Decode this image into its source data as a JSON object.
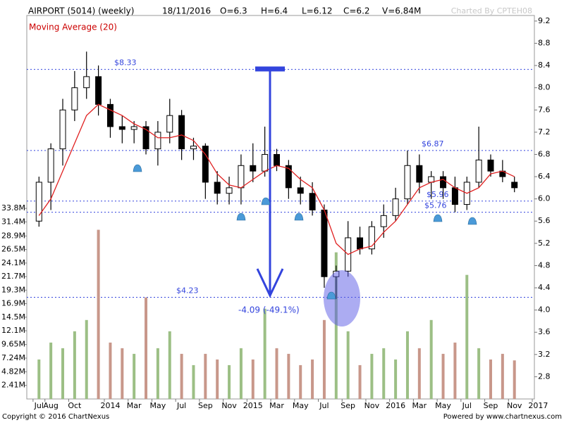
{
  "chart_data": {
    "type": "candlestick",
    "title": "AIRPORT (5014) (weekly)",
    "date": "18/11/2016",
    "quote": [
      "O=6.3",
      "H=6.4",
      "L=6.12",
      "C=6.2",
      "V=6.84M"
    ],
    "credit": "Charted By CPTEH08",
    "footer_left": "Copyright © 2016 ChartNexus",
    "footer_right": "Powered by www.chartnexus.com",
    "annotation": "-4.09 (-49.1%)",
    "x": [
      "2013-07",
      "2013-08",
      "2013-09",
      "2013-10",
      "2013-11",
      "2013-12",
      "2014-01",
      "2014-02",
      "2014-03",
      "2014-04",
      "2014-05",
      "2014-06",
      "2014-07",
      "2014-08",
      "2014-09",
      "2014-10",
      "2014-11",
      "2014-12",
      "2015-01",
      "2015-02",
      "2015-03",
      "2015-04",
      "2015-05",
      "2015-06",
      "2015-07",
      "2015-08",
      "2015-09",
      "2015-10",
      "2015-11",
      "2015-12",
      "2016-01",
      "2016-02",
      "2016-03",
      "2016-04",
      "2016-05",
      "2016-06",
      "2016-07",
      "2016-08",
      "2016-09",
      "2016-10",
      "2016-11"
    ],
    "open": [
      5.6,
      6.3,
      6.9,
      7.6,
      8.0,
      8.2,
      7.7,
      7.3,
      7.25,
      7.3,
      6.9,
      7.2,
      7.5,
      6.9,
      6.95,
      6.3,
      6.1,
      6.2,
      6.6,
      6.5,
      6.8,
      6.6,
      6.2,
      6.1,
      5.8,
      4.6,
      4.7,
      5.3,
      5.1,
      5.5,
      5.7,
      6.0,
      6.6,
      6.3,
      6.4,
      6.2,
      5.9,
      6.3,
      6.7,
      6.5,
      6.3
    ],
    "high": [
      6.4,
      7.0,
      7.8,
      8.3,
      8.65,
      8.4,
      7.8,
      7.5,
      7.4,
      7.4,
      7.4,
      7.8,
      7.6,
      7.1,
      7.0,
      6.5,
      6.4,
      6.8,
      7.0,
      7.3,
      6.9,
      6.7,
      6.4,
      6.3,
      5.9,
      4.8,
      5.6,
      5.5,
      5.6,
      5.9,
      6.2,
      6.87,
      6.8,
      6.5,
      6.5,
      6.4,
      6.4,
      7.3,
      6.8,
      6.7,
      6.4
    ],
    "low": [
      5.5,
      5.8,
      6.6,
      7.4,
      7.8,
      7.5,
      7.1,
      7.0,
      7.0,
      6.8,
      6.6,
      7.0,
      6.7,
      6.7,
      6.0,
      5.9,
      5.9,
      5.9,
      6.3,
      6.4,
      6.5,
      6.0,
      5.9,
      5.7,
      4.4,
      4.2,
      4.6,
      5.0,
      5.0,
      5.3,
      5.6,
      5.9,
      6.1,
      6.0,
      6.0,
      5.76,
      5.8,
      6.2,
      6.4,
      6.3,
      6.12
    ],
    "close": [
      6.3,
      6.9,
      7.6,
      8.0,
      8.2,
      7.7,
      7.3,
      7.25,
      7.3,
      6.9,
      7.2,
      7.5,
      6.9,
      6.95,
      6.3,
      6.1,
      6.2,
      6.6,
      6.5,
      6.8,
      6.6,
      6.2,
      6.1,
      5.8,
      4.6,
      4.7,
      5.3,
      5.1,
      5.5,
      5.7,
      6.0,
      6.6,
      6.3,
      6.4,
      6.2,
      5.9,
      6.3,
      6.7,
      6.5,
      6.4,
      6.2
    ],
    "up_color": "#ffffff",
    "down_color": "#000000",
    "moving_average": {
      "name": "Moving Average (20)",
      "color": "#e02020",
      "values": [
        5.7,
        6.0,
        6.5,
        7.0,
        7.5,
        7.7,
        7.6,
        7.5,
        7.35,
        7.25,
        7.1,
        7.1,
        7.15,
        7.05,
        6.8,
        6.45,
        6.25,
        6.2,
        6.35,
        6.5,
        6.6,
        6.55,
        6.35,
        6.2,
        5.8,
        5.2,
        5.0,
        5.1,
        5.15,
        5.4,
        5.6,
        5.9,
        6.2,
        6.3,
        6.35,
        6.2,
        6.1,
        6.2,
        6.45,
        6.5,
        6.4
      ]
    },
    "volume": {
      "up_color": "#9cbf85",
      "down_color": "#c8978a",
      "values": [
        7,
        10,
        9,
        12,
        14,
        30,
        10,
        9,
        8,
        18,
        9,
        12,
        8,
        6,
        8,
        7,
        6,
        9,
        7,
        16,
        9,
        8,
        6,
        7,
        14,
        26,
        12,
        6,
        8,
        9,
        7,
        12,
        9,
        14,
        8,
        10,
        22,
        9,
        7,
        8,
        6.84
      ]
    },
    "levels": [
      {
        "value": 8.33,
        "label": "$8.33"
      },
      {
        "value": 6.87,
        "label": "$6.87"
      },
      {
        "value": 5.96,
        "label": "$5.96"
      },
      {
        "value": 5.76,
        "label": "$5.76"
      },
      {
        "value": 4.23,
        "label": "$4.23"
      }
    ],
    "xlim": [
      "2013-06",
      "2017-01"
    ],
    "xticks": [
      {
        "value": "2013-07",
        "label": "Jul"
      },
      {
        "value": "2013-08",
        "label": "Aug"
      },
      {
        "value": "2013-10",
        "label": "Oct"
      },
      {
        "value": "2014-01",
        "label": "2014"
      },
      {
        "value": "2014-03",
        "label": "Mar"
      },
      {
        "value": "2014-05",
        "label": "May"
      },
      {
        "value": "2014-07",
        "label": "Jul"
      },
      {
        "value": "2014-09",
        "label": "Sep"
      },
      {
        "value": "2014-11",
        "label": "Nov"
      },
      {
        "value": "2015-01",
        "label": "2015"
      },
      {
        "value": "2015-03",
        "label": "Mar"
      },
      {
        "value": "2015-05",
        "label": "May"
      },
      {
        "value": "2015-07",
        "label": "Jul"
      },
      {
        "value": "2015-09",
        "label": "Sep"
      },
      {
        "value": "2015-11",
        "label": "Nov"
      },
      {
        "value": "2016-01",
        "label": "2016"
      },
      {
        "value": "2016-03",
        "label": "Mar"
      },
      {
        "value": "2016-05",
        "label": "May"
      },
      {
        "value": "2016-07",
        "label": "Jul"
      },
      {
        "value": "2016-09",
        "label": "Sep"
      },
      {
        "value": "2016-11",
        "label": "Nov"
      },
      {
        "value": "2017-01",
        "label": "2017"
      }
    ],
    "ylim": [
      2.4,
      9.3
    ],
    "yticks": [
      2.8,
      3.2,
      3.6,
      {
        "value": 4,
        "label": "4.0"
      },
      4.4,
      4.8,
      5.2,
      5.6,
      {
        "value": 6,
        "label": "6.0"
      },
      6.4,
      6.8,
      7.2,
      7.6,
      {
        "value": 8,
        "label": "8.0"
      },
      8.4,
      8.8,
      9.2
    ],
    "y2lim": [
      0,
      68
    ],
    "y2ticks": [
      {
        "value": 2.41,
        "label": "2.41M"
      },
      {
        "value": 4.82,
        "label": "4.82M"
      },
      {
        "value": 7.24,
        "label": "7.24M"
      },
      {
        "value": 9.65,
        "label": "9.65M"
      },
      {
        "value": 12.1,
        "label": "12.1M"
      },
      {
        "value": 14.5,
        "label": "14.5M"
      },
      {
        "value": 16.9,
        "label": "16.9M"
      },
      {
        "value": 19.3,
        "label": "19.3M"
      },
      {
        "value": 21.7,
        "label": "21.7M"
      },
      {
        "value": 24.1,
        "label": "24.1M"
      },
      {
        "value": 26.5,
        "label": "26.5M"
      },
      {
        "value": 28.9,
        "label": "28.9M"
      },
      {
        "value": 31.4,
        "label": "31.4M"
      },
      {
        "value": 33.8,
        "label": "33.8M"
      }
    ]
  }
}
